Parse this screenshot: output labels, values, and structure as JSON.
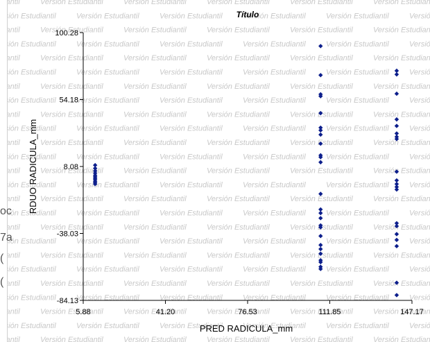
{
  "watermark_text": "Versión Estudiantil",
  "left_fragments": [
    "oc",
    "7a",
    "(",
    "("
  ],
  "colors": {
    "point": "#0d1f8c",
    "axis": "#000000",
    "watermark": "#c8c8c8"
  },
  "chart_data": {
    "type": "scatter",
    "title": "Título",
    "xlabel": "PRED RADICULA_mm",
    "ylabel": "RDUO RADICULA_mm",
    "xlim": [
      5.88,
      147.17
    ],
    "ylim": [
      -84.13,
      100.28
    ],
    "xticks": [
      "5.88",
      "41.20",
      "76.53",
      "111.85",
      "147.17"
    ],
    "yticks": [
      "100.28",
      "54.18",
      "8.08",
      "-38.03",
      "-84.13"
    ],
    "grid": false,
    "series": [
      {
        "points": [
          [
            11.0,
            9.0
          ],
          [
            11.0,
            6.8
          ],
          [
            11.0,
            5.0
          ],
          [
            11.0,
            3.5
          ],
          [
            11.0,
            2.0
          ],
          [
            11.0,
            1.0
          ],
          [
            11.0,
            0.0
          ],
          [
            11.0,
            -0.8
          ],
          [
            11.0,
            -2.0
          ],
          [
            11.0,
            -3.0
          ],
          [
            11.0,
            -4.0
          ],
          [
            107.9,
            91.0
          ],
          [
            107.9,
            71.0
          ],
          [
            107.9,
            57.8
          ],
          [
            107.9,
            56.5
          ],
          [
            107.9,
            44.8
          ],
          [
            107.9,
            34.8
          ],
          [
            107.9,
            33.0
          ],
          [
            107.9,
            30.0
          ],
          [
            107.9,
            23.8
          ],
          [
            107.9,
            14.5
          ],
          [
            107.9,
            11.0
          ],
          [
            107.9,
            15.8
          ],
          [
            107.9,
            -10.8
          ],
          [
            107.9,
            -21.5
          ],
          [
            107.9,
            -24.0
          ],
          [
            107.9,
            -27.5
          ],
          [
            107.9,
            -32.5
          ],
          [
            107.9,
            -33.8
          ],
          [
            107.9,
            -39.8
          ],
          [
            107.9,
            -46.0
          ],
          [
            107.9,
            -48.8
          ],
          [
            107.9,
            -52.0
          ],
          [
            107.9,
            -56.5
          ],
          [
            107.9,
            -57.8
          ],
          [
            107.9,
            -61.0
          ],
          [
            107.9,
            -62.5
          ],
          [
            140.6,
            74.0
          ],
          [
            140.6,
            71.5
          ],
          [
            140.6,
            58.2
          ],
          [
            140.6,
            40.5
          ],
          [
            140.6,
            36.0
          ],
          [
            140.6,
            30.8
          ],
          [
            140.6,
            28.5
          ],
          [
            140.6,
            27.0
          ],
          [
            140.6,
            4.5
          ],
          [
            140.6,
            -1.5
          ],
          [
            140.6,
            -4.0
          ],
          [
            140.6,
            -6.0
          ],
          [
            140.6,
            -7.8
          ],
          [
            140.6,
            -31.0
          ],
          [
            140.6,
            -33.0
          ],
          [
            140.6,
            -38.5
          ],
          [
            140.6,
            -42.5
          ],
          [
            140.6,
            -46.8
          ],
          [
            140.6,
            -72.0
          ],
          [
            140.6,
            -80.5
          ]
        ]
      }
    ]
  }
}
